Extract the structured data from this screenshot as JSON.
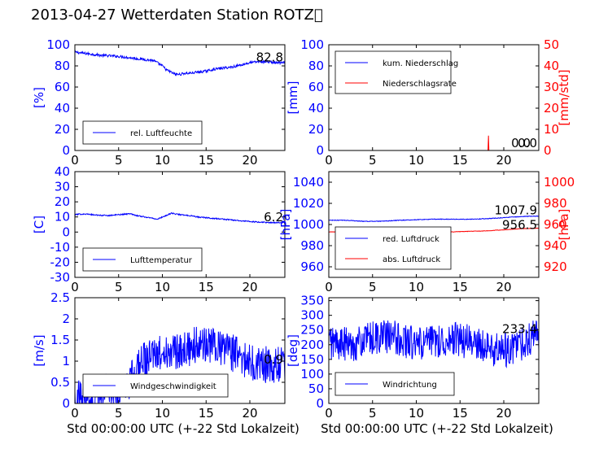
{
  "title": "2013-04-27 Wetterdaten Station ROTZ\u0000",
  "colors": {
    "primary": "#0000ff",
    "secondary": "#ff0000",
    "axis": "#000000"
  },
  "chart_data": [
    {
      "id": "feuchte",
      "type": "line",
      "ylabel": "[%]",
      "ylim": [
        0,
        100
      ],
      "yticks": [
        0,
        20,
        40,
        60,
        80,
        100
      ],
      "xlim": [
        0,
        24
      ],
      "xticks": [
        0,
        5,
        10,
        15,
        20
      ],
      "annotation": "82.8",
      "legend_position": "lower-center",
      "series": [
        {
          "name": "rel. Luftfeuchte",
          "axis": "left",
          "color": "#0000ff",
          "noise": 1.2,
          "x": [
            0,
            1,
            2,
            3,
            4,
            5,
            6,
            7,
            8,
            9,
            10,
            10.5,
            11,
            11.5,
            12,
            12.5,
            13,
            14,
            15,
            16,
            17,
            18,
            19,
            20,
            21,
            22,
            23,
            24
          ],
          "y": [
            93,
            92,
            91,
            90,
            89.5,
            89,
            88,
            87,
            86,
            85,
            80,
            76,
            74,
            72,
            72,
            73,
            73,
            74,
            75,
            77,
            78,
            79,
            81,
            83,
            84,
            84,
            83,
            82.8
          ]
        }
      ]
    },
    {
      "id": "niederschlag",
      "type": "line",
      "ylabel": "[mm]",
      "ylim": [
        0,
        100
      ],
      "yticks": [
        0,
        20,
        40,
        60,
        80,
        100
      ],
      "y2label": "[mm/std]",
      "y2lim": [
        0,
        50
      ],
      "y2ticks": [
        0,
        10,
        20,
        30,
        40,
        50
      ],
      "xlim": [
        0,
        24
      ],
      "xticks": [
        0,
        5,
        10,
        15,
        20
      ],
      "annotation": "0.0",
      "annotation2": "0.0",
      "legend_position": "upper-left",
      "series": [
        {
          "name": "kum. Niederschlag",
          "axis": "left",
          "color": "#0000ff",
          "noise": 0,
          "x": [
            0,
            24
          ],
          "y": [
            0,
            0
          ]
        },
        {
          "name": "Niederschlagsrate",
          "axis": "right",
          "color": "#ff0000",
          "noise": 0,
          "x": [
            0,
            18.2,
            18.25,
            18.3,
            24
          ],
          "y": [
            0,
            0,
            7,
            0,
            0
          ]
        }
      ]
    },
    {
      "id": "temperatur",
      "type": "line",
      "ylabel": "[C]",
      "ylim": [
        -30,
        40
      ],
      "yticks": [
        -30,
        -20,
        -10,
        0,
        10,
        20,
        30,
        40
      ],
      "xlim": [
        0,
        24
      ],
      "xticks": [
        0,
        5,
        10,
        15,
        20
      ],
      "annotation": "6.2",
      "legend_position": "lower-center",
      "series": [
        {
          "name": "Lufttemperatur",
          "axis": "left",
          "color": "#0000ff",
          "noise": 0.4,
          "x": [
            0,
            1,
            2,
            3,
            4,
            5,
            6,
            6.5,
            7,
            8,
            9,
            9.5,
            10,
            10.5,
            11,
            12,
            13,
            14,
            15,
            16,
            17,
            18,
            19,
            20,
            21,
            22,
            23,
            24
          ],
          "y": [
            11.5,
            12,
            11.5,
            11,
            11,
            11.5,
            12,
            12,
            11,
            10,
            9,
            8.5,
            10,
            11,
            12.5,
            11.5,
            11,
            10,
            9.5,
            9,
            8.5,
            8,
            7.5,
            7,
            6.5,
            6.3,
            6.2,
            6.2
          ]
        }
      ]
    },
    {
      "id": "luftdruck",
      "type": "line",
      "ylabel": "[hPa]",
      "ylim": [
        950,
        1050
      ],
      "yticks": [
        960,
        980,
        1000,
        1020,
        1040
      ],
      "y2label": "[hPa]",
      "y2lim": [
        910,
        1010
      ],
      "y2ticks": [
        920,
        940,
        960,
        980,
        1000
      ],
      "xlim": [
        0,
        24
      ],
      "xticks": [
        0,
        5,
        10,
        15,
        20
      ],
      "annotation": "1007.9",
      "annotation2": "956.5",
      "legend_position": "lower-left",
      "series": [
        {
          "name": "red. Luftdruck",
          "axis": "left",
          "color": "#0000ff",
          "noise": 0.3,
          "x": [
            0,
            2,
            4,
            6,
            8,
            10,
            12,
            14,
            16,
            18,
            20,
            22,
            24
          ],
          "y": [
            1004,
            1004,
            1003,
            1003,
            1004,
            1004.5,
            1005,
            1005,
            1005,
            1005.5,
            1006.5,
            1007.5,
            1007.9
          ]
        },
        {
          "name": "abs. Luftdruck",
          "axis": "right",
          "color": "#ff0000",
          "noise": 0.2,
          "x": [
            0,
            2,
            4,
            6,
            8,
            10,
            12,
            14,
            16,
            18,
            20,
            22,
            24
          ],
          "y": [
            953,
            953,
            952.5,
            952,
            952.5,
            953,
            953,
            953,
            953.5,
            954,
            955,
            956,
            956.5
          ]
        }
      ]
    },
    {
      "id": "wind",
      "type": "line",
      "ylabel": "[m/s]",
      "ylim": [
        0,
        2.5
      ],
      "yticks": [
        0,
        0.5,
        1,
        1.5,
        2,
        2.5
      ],
      "xlim": [
        0,
        24
      ],
      "xticks": [
        0,
        5,
        10,
        15,
        20
      ],
      "xlabel": "Std 00:00:00 UTC (+-22 Std Lokalzeit)",
      "annotation": "0.9",
      "legend_position": "lower-center",
      "series": [
        {
          "name": "Windgeschwindigkeit",
          "axis": "left",
          "color": "#0000ff",
          "noise": 0.45,
          "x": [
            0,
            1,
            2,
            3,
            4,
            5,
            6,
            6.5,
            7,
            8,
            9,
            10,
            11,
            12,
            13,
            14,
            15,
            16,
            17,
            18,
            19,
            20,
            21,
            22,
            23,
            24
          ],
          "y": [
            0.15,
            0.15,
            0.2,
            0.25,
            0.3,
            0.3,
            0.35,
            0.6,
            0.9,
            1.0,
            1.1,
            1.2,
            1.2,
            1.3,
            1.3,
            1.4,
            1.4,
            1.3,
            1.25,
            1.2,
            1.1,
            1.0,
            0.95,
            0.9,
            0.9,
            0.9
          ]
        }
      ]
    },
    {
      "id": "windrichtung",
      "type": "line",
      "ylabel": "[deg]",
      "ylim": [
        0,
        360
      ],
      "yticks": [
        0,
        50,
        100,
        150,
        200,
        250,
        300,
        350
      ],
      "xlim": [
        0,
        24
      ],
      "xticks": [
        0,
        5,
        10,
        15,
        20
      ],
      "xlabel": "Std 00:00:00 UTC (+-22 Std Lokalzeit)",
      "annotation": "233.4",
      "legend_position": "lower-left",
      "series": [
        {
          "name": "Windrichtung",
          "axis": "left",
          "color": "#0000ff",
          "noise": 60,
          "x": [
            0,
            2,
            4,
            6,
            8,
            10,
            12,
            14,
            16,
            18,
            20,
            22,
            24
          ],
          "y": [
            210,
            200,
            210,
            230,
            220,
            200,
            210,
            220,
            210,
            190,
            180,
            200,
            233.4
          ]
        }
      ]
    }
  ]
}
